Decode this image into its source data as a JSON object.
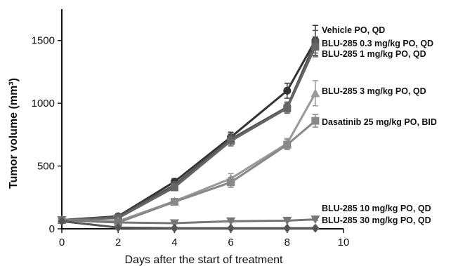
{
  "chart_data": {
    "type": "line",
    "xlabel": "Days after the start of treatment",
    "ylabel": "Tumor volume  (mm³)",
    "xlim": [
      0,
      10
    ],
    "ylim": [
      0,
      1750
    ],
    "xticks": [
      0,
      2,
      4,
      6,
      8,
      10
    ],
    "yticks": [
      0,
      500,
      1000,
      1500
    ],
    "grid": false,
    "legend": "inline-right",
    "series": [
      {
        "name": "Vehicle  PO, QD",
        "color": "#333333",
        "marker": "circle",
        "x": [
          0,
          2,
          4,
          6,
          8,
          9
        ],
        "y": [
          70,
          100,
          375,
          730,
          1100,
          1500
        ],
        "err": [
          15,
          15,
          25,
          40,
          60,
          120
        ]
      },
      {
        "name": "BLU-285 0.3 mg/kg PO, QD",
        "color": "#555555",
        "marker": "circle",
        "x": [
          0,
          2,
          4,
          6,
          8,
          9
        ],
        "y": [
          70,
          95,
          350,
          715,
          970,
          1490
        ],
        "err": [
          15,
          15,
          25,
          40,
          40,
          90
        ]
      },
      {
        "name": "BLU-285 1 mg/kg PO, QD",
        "color": "#666666",
        "marker": "square",
        "x": [
          0,
          2,
          4,
          6,
          8,
          9
        ],
        "y": [
          70,
          85,
          330,
          700,
          960,
          1450
        ],
        "err": [
          15,
          15,
          20,
          40,
          40,
          80
        ]
      },
      {
        "name": "BLU-285 3 mg/kg PO, QD",
        "color": "#999999",
        "marker": "triangle-up",
        "x": [
          0,
          2,
          4,
          6,
          8,
          9
        ],
        "y": [
          70,
          60,
          220,
          400,
          680,
          1080
        ],
        "err": [
          15,
          12,
          20,
          40,
          40,
          100
        ]
      },
      {
        "name": "Dasatinib  25 mg/kg PO, BID",
        "color": "#888888",
        "marker": "square",
        "x": [
          0,
          2,
          4,
          6,
          8,
          9
        ],
        "y": [
          70,
          50,
          215,
          370,
          670,
          860
        ],
        "err": [
          15,
          10,
          20,
          40,
          40,
          50
        ]
      },
      {
        "name": "BLU-285 10 mg/kg PO, QD",
        "color": "#777777",
        "marker": "triangle-down",
        "x": [
          0,
          2,
          4,
          6,
          8,
          9
        ],
        "y": [
          70,
          50,
          45,
          60,
          65,
          75
        ],
        "err": [
          8,
          6,
          6,
          6,
          6,
          8
        ]
      },
      {
        "name": "BLU-285 30 mg/kg PO, QD",
        "color": "#555555",
        "marker": "diamond",
        "x": [
          0,
          2,
          4,
          6,
          8,
          9
        ],
        "y": [
          60,
          10,
          5,
          5,
          5,
          5
        ],
        "err": [
          8,
          4,
          3,
          3,
          3,
          3
        ]
      }
    ]
  }
}
